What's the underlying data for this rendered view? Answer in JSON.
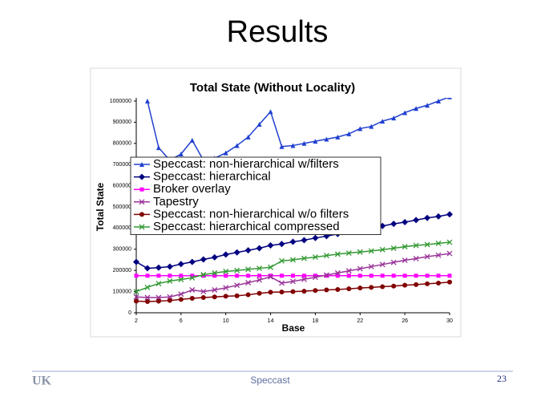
{
  "slide": {
    "title": "Results",
    "logo": "UK",
    "footer": "Speccast",
    "page": "23"
  },
  "chart_data": {
    "type": "line",
    "title": "Total State (Without Locality)",
    "x_label": "Base",
    "y_label": "Total State",
    "x": [
      2,
      3,
      4,
      5,
      6,
      7,
      8,
      9,
      10,
      11,
      12,
      13,
      14,
      15,
      16,
      17,
      18,
      19,
      20,
      21,
      22,
      23,
      24,
      25,
      26,
      27,
      28,
      29,
      30
    ],
    "xlim": [
      2,
      30
    ],
    "xticks": [
      2,
      6,
      10,
      14,
      18,
      22,
      26,
      30
    ],
    "ylim": [
      0,
      1000000
    ],
    "yticks": [
      0,
      100000,
      200000,
      300000,
      400000,
      500000,
      600000,
      700000,
      800000,
      900000,
      1000000
    ],
    "grid": false,
    "legend": "center left",
    "series": [
      {
        "name": "Speccast: non-hierarchical w/filters",
        "color": "#2040d0",
        "marker": "triangle",
        "values": [
          null,
          1000000,
          780000,
          720000,
          750000,
          815000,
          720000,
          730000,
          755000,
          790000,
          830000,
          890000,
          950000,
          785000,
          790000,
          800000,
          810000,
          820000,
          830000,
          845000,
          870000,
          880000,
          905000,
          920000,
          945000,
          965000,
          980000,
          1000000,
          1020000
        ]
      },
      {
        "name": "Speccast: hierarchical",
        "color": "#000080",
        "marker": "diamond",
        "values": [
          240000,
          210000,
          213000,
          218000,
          230000,
          240000,
          252000,
          262000,
          275000,
          285000,
          295000,
          305000,
          318000,
          325000,
          335000,
          343000,
          353000,
          362000,
          372000,
          382000,
          390000,
          400000,
          410000,
          420000,
          428000,
          438000,
          448000,
          455000,
          465000
        ]
      },
      {
        "name": "Broker overlay",
        "color": "#ff00ff",
        "marker": "square",
        "values": [
          175000,
          175000,
          175000,
          175000,
          175000,
          175000,
          175000,
          175000,
          175000,
          175000,
          175000,
          175000,
          175000,
          175000,
          175000,
          175000,
          175000,
          175000,
          175000,
          175000,
          175000,
          175000,
          175000,
          175000,
          175000,
          175000,
          175000,
          175000,
          175000
        ]
      },
      {
        "name": "Tapestry",
        "color": "#993399",
        "marker": "x",
        "values": [
          75000,
          72000,
          72000,
          75000,
          88000,
          108000,
          100000,
          108000,
          118000,
          130000,
          142000,
          155000,
          170000,
          140000,
          148000,
          158000,
          168000,
          178000,
          188000,
          198000,
          208000,
          218000,
          228000,
          238000,
          248000,
          256000,
          265000,
          272000,
          280000
        ]
      },
      {
        "name": "Speccast: non-hierarchical w/o filters",
        "color": "#800000",
        "marker": "circle",
        "values": [
          55000,
          53000,
          55000,
          58000,
          63000,
          68000,
          72000,
          75000,
          78000,
          80000,
          85000,
          92000,
          97000,
          98000,
          100000,
          102000,
          105000,
          108000,
          110000,
          113000,
          117000,
          120000,
          123000,
          126000,
          130000,
          133000,
          137000,
          140000,
          145000
        ]
      },
      {
        "name": "Speccast: hierarchical compressed",
        "color": "#339933",
        "marker": "x",
        "values": [
          100000,
          120000,
          138000,
          150000,
          157000,
          165000,
          180000,
          188000,
          195000,
          200000,
          205000,
          210000,
          215000,
          245000,
          250000,
          257000,
          263000,
          270000,
          277000,
          282000,
          287000,
          292000,
          298000,
          305000,
          312000,
          318000,
          322000,
          328000,
          333000
        ]
      }
    ]
  }
}
